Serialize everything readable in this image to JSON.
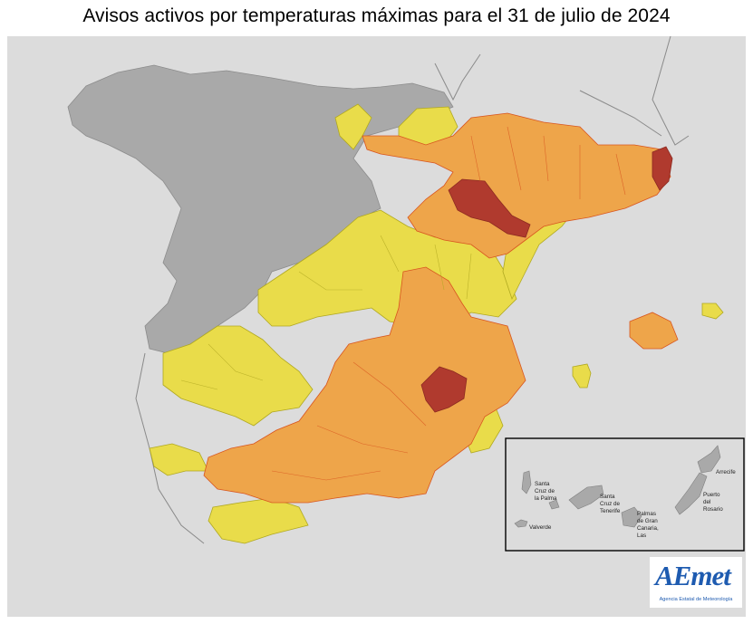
{
  "title": "Avisos activos por temperaturas máximas para el 31 de julio de 2024",
  "colors": {
    "background": "#dcdcdc",
    "land_other": "#a9a9a9",
    "yellow": "#e9dc4a",
    "orange": "#eea54a",
    "red": "#b03a2e",
    "border_orange": "#d8551f",
    "border_yellow": "#b0a820"
  },
  "legend_levels": [
    "yellow",
    "orange",
    "red"
  ],
  "inset": {
    "places": [
      "Santa Cruz de la Palma",
      "Valverde",
      "Santa Cruz de Tenerife",
      "Palmas de Gran Canaria, Las",
      "Puerto del Rosario",
      "Arrecife"
    ]
  },
  "logo": {
    "text": "AEmet",
    "subtitle": "Agencia Estatal de Meteorología"
  }
}
